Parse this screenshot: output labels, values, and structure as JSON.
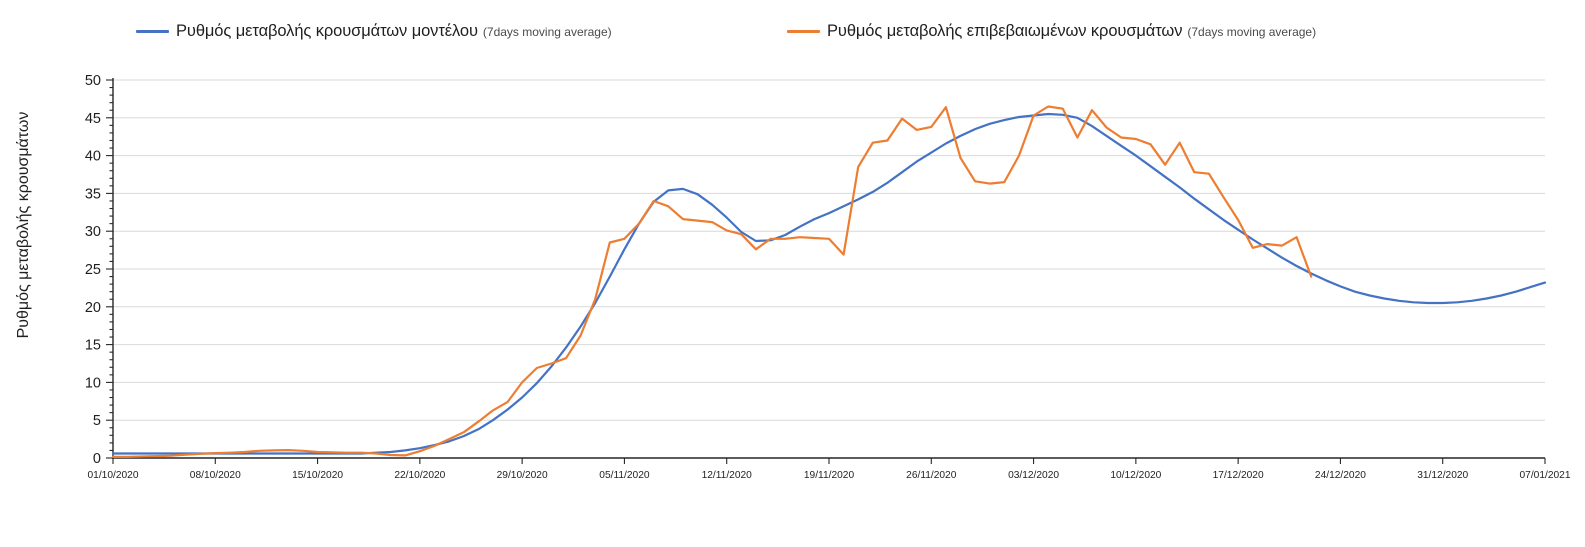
{
  "colors": {
    "background": "#FFFFFF",
    "gridline": "#D9D9D9",
    "axis": "#262626",
    "tick_text": "#1F1F1F",
    "note_text": "#4A4A4A"
  },
  "legend": {
    "items": [
      {
        "label": "Ρυθμός μεταβολής κρουσμάτων μοντέλου",
        "note": "(7days moving average)",
        "color": "#4472C4"
      },
      {
        "label": "Ρυθμός μεταβολής επιβεβαιωμένων κρουσμάτων",
        "note": "(7days moving average)",
        "color": "#ED7D31"
      }
    ]
  },
  "chart_data": {
    "type": "line",
    "title": "",
    "xlabel": "",
    "ylabel": "Ρυθμός μεταβολής κρουσμάτων",
    "ylim": [
      0,
      50
    ],
    "ytick_step": 5,
    "y_tick_labels": [
      "0",
      "5",
      "10",
      "15",
      "20",
      "25",
      "30",
      "35",
      "40",
      "45",
      "50"
    ],
    "grid": true,
    "legend_position": "top",
    "x_start_date": "01/10/2020",
    "x_interval": "daily",
    "x_tick_every_days": 7,
    "x_tick_labels": [
      "01/10/2020",
      "08/10/2020",
      "15/10/2020",
      "22/10/2020",
      "29/10/2020",
      "05/11/2020",
      "12/11/2020",
      "19/11/2020",
      "26/11/2020",
      "03/12/2020",
      "10/12/2020",
      "17/12/2020",
      "24/12/2020",
      "31/12/2020",
      "07/01/2021"
    ],
    "series": [
      {
        "name": "Ρυθμός μεταβολής κρουσμάτων μοντέλου (7days moving average)",
        "color": "#4472C4",
        "values": [
          0.6,
          0.6,
          0.6,
          0.6,
          0.6,
          0.6,
          0.6,
          0.6,
          0.6,
          0.6,
          0.6,
          0.6,
          0.6,
          0.6,
          0.6,
          0.6,
          0.6,
          0.6,
          0.7,
          0.8,
          1.0,
          1.3,
          1.7,
          2.2,
          2.9,
          3.8,
          5.0,
          6.4,
          8.0,
          9.9,
          12.1,
          14.6,
          17.4,
          20.5,
          24.0,
          27.6,
          31.0,
          33.9,
          35.4,
          35.6,
          34.9,
          33.5,
          31.8,
          29.9,
          28.7,
          28.8,
          29.5,
          30.6,
          31.6,
          32.4,
          33.3,
          34.2,
          35.2,
          36.4,
          37.8,
          39.2,
          40.4,
          41.6,
          42.6,
          43.5,
          44.2,
          44.7,
          45.1,
          45.3,
          45.5,
          45.4,
          45.0,
          43.9,
          42.6,
          41.3,
          40.0,
          38.6,
          37.2,
          35.8,
          34.3,
          32.9,
          31.5,
          30.2,
          28.9,
          27.7,
          26.5,
          25.4,
          24.4,
          23.5,
          22.7,
          22.0,
          21.5,
          21.1,
          20.8,
          20.6,
          20.5,
          20.5,
          20.6,
          20.8,
          21.1,
          21.5,
          22.0,
          22.6,
          23.2
        ]
      },
      {
        "name": "Ρυθμός μεταβολής επιβεβαιωμένων κρουσμάτων (7days moving average)",
        "color": "#ED7D31",
        "values": [
          0.15,
          0.15,
          0.2,
          0.25,
          0.3,
          0.45,
          0.55,
          0.65,
          0.7,
          0.8,
          0.95,
          1.0,
          1.05,
          0.95,
          0.8,
          0.75,
          0.7,
          0.7,
          0.6,
          0.4,
          0.35,
          0.9,
          1.6,
          2.5,
          3.4,
          4.8,
          6.3,
          7.4,
          10.0,
          11.9,
          12.5,
          13.2,
          16.2,
          21.0,
          28.5,
          29.0,
          31.0,
          34.0,
          33.3,
          31.6,
          31.4,
          31.2,
          30.1,
          29.6,
          27.6,
          29.0,
          29.0,
          29.2,
          29.1,
          29.0,
          26.9,
          38.5,
          41.7,
          42.0,
          44.9,
          43.4,
          43.8,
          46.4,
          39.7,
          36.6,
          36.3,
          36.5,
          40.0,
          45.3,
          46.5,
          46.2,
          42.4,
          46.0,
          43.7,
          42.4,
          42.2,
          41.5,
          38.8,
          41.7,
          37.8,
          37.6,
          34.5,
          31.5,
          27.8,
          28.3,
          28.1,
          29.2,
          24.0
        ]
      }
    ]
  }
}
